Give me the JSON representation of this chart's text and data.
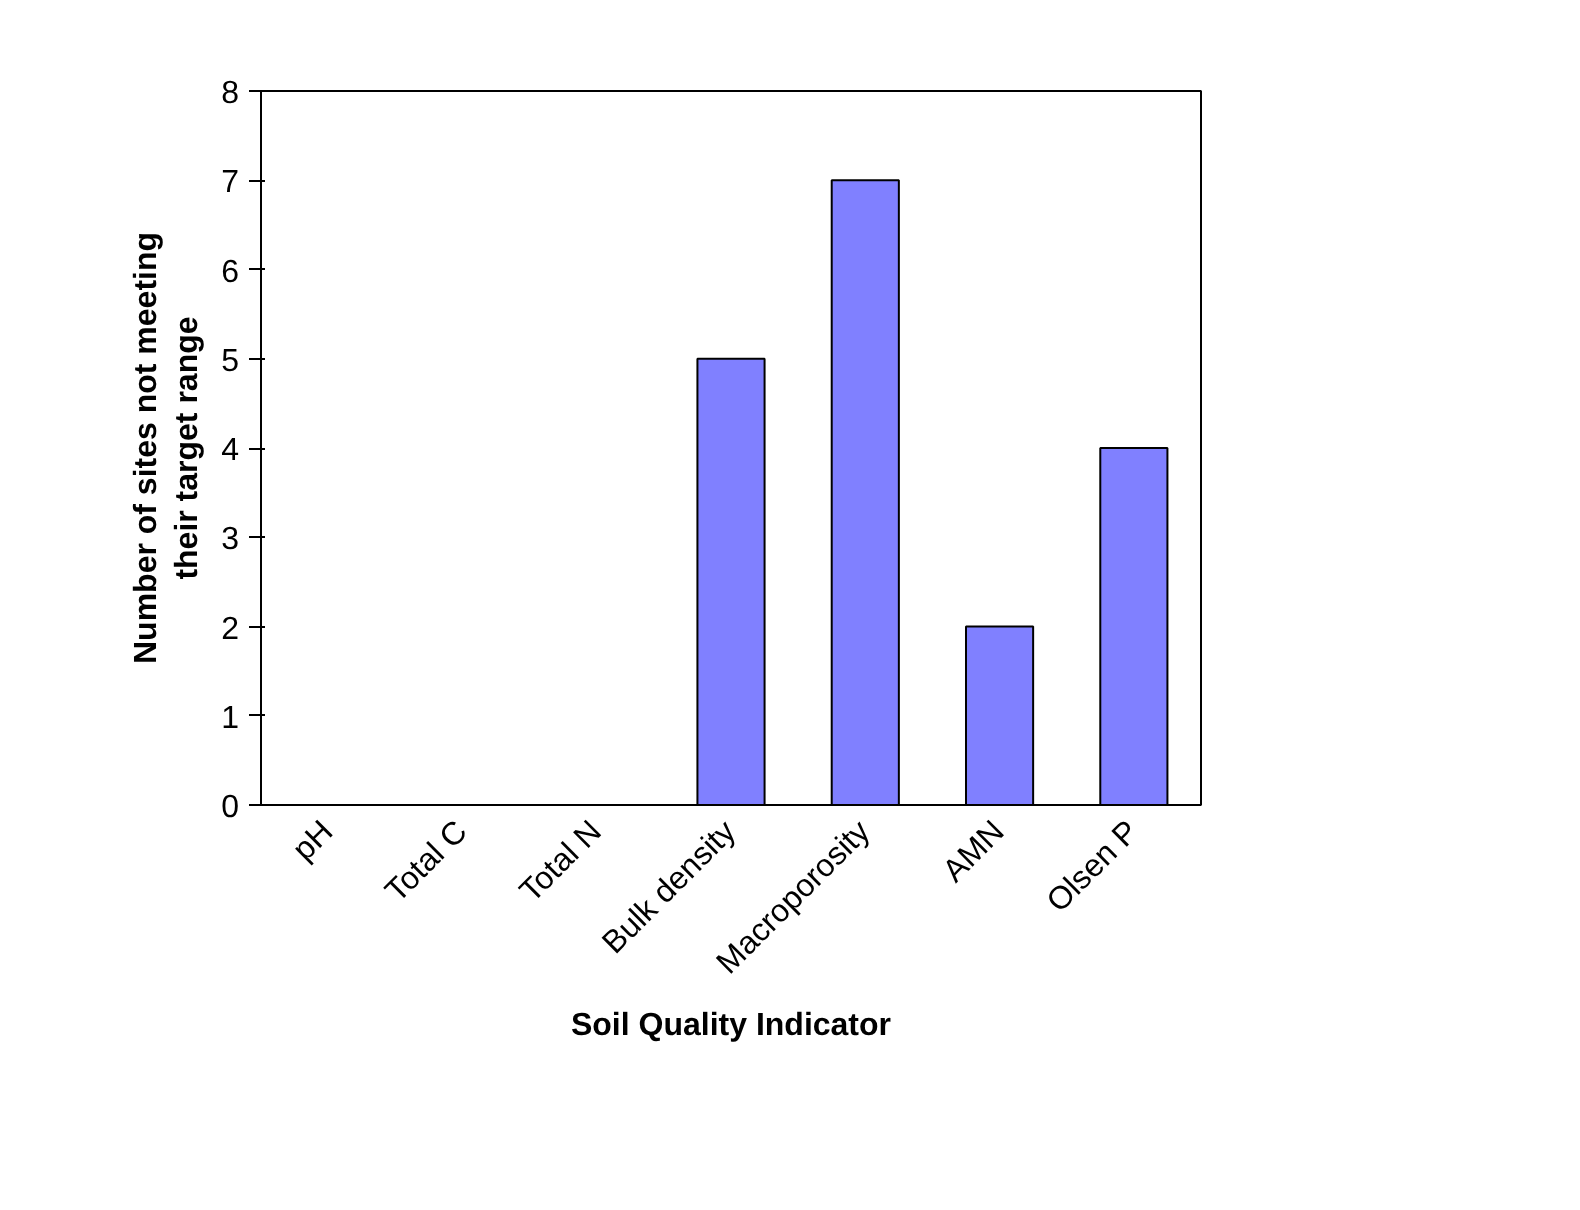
{
  "chart_data": {
    "type": "bar",
    "xlabel": "Soil Quality Indicator",
    "ylabel": "Number of sites not meeting their target range",
    "categories": [
      "pH",
      "Total C",
      "Total N",
      "Bulk density",
      "Macroporosity",
      "AMN",
      "Olsen P"
    ],
    "values": [
      0,
      0,
      0,
      5,
      7,
      2,
      4
    ],
    "color": "#8080ff",
    "ylim": [
      0,
      8
    ],
    "yticks": [
      0,
      1,
      2,
      3,
      4,
      5,
      6,
      7,
      8
    ],
    "grid": false
  }
}
